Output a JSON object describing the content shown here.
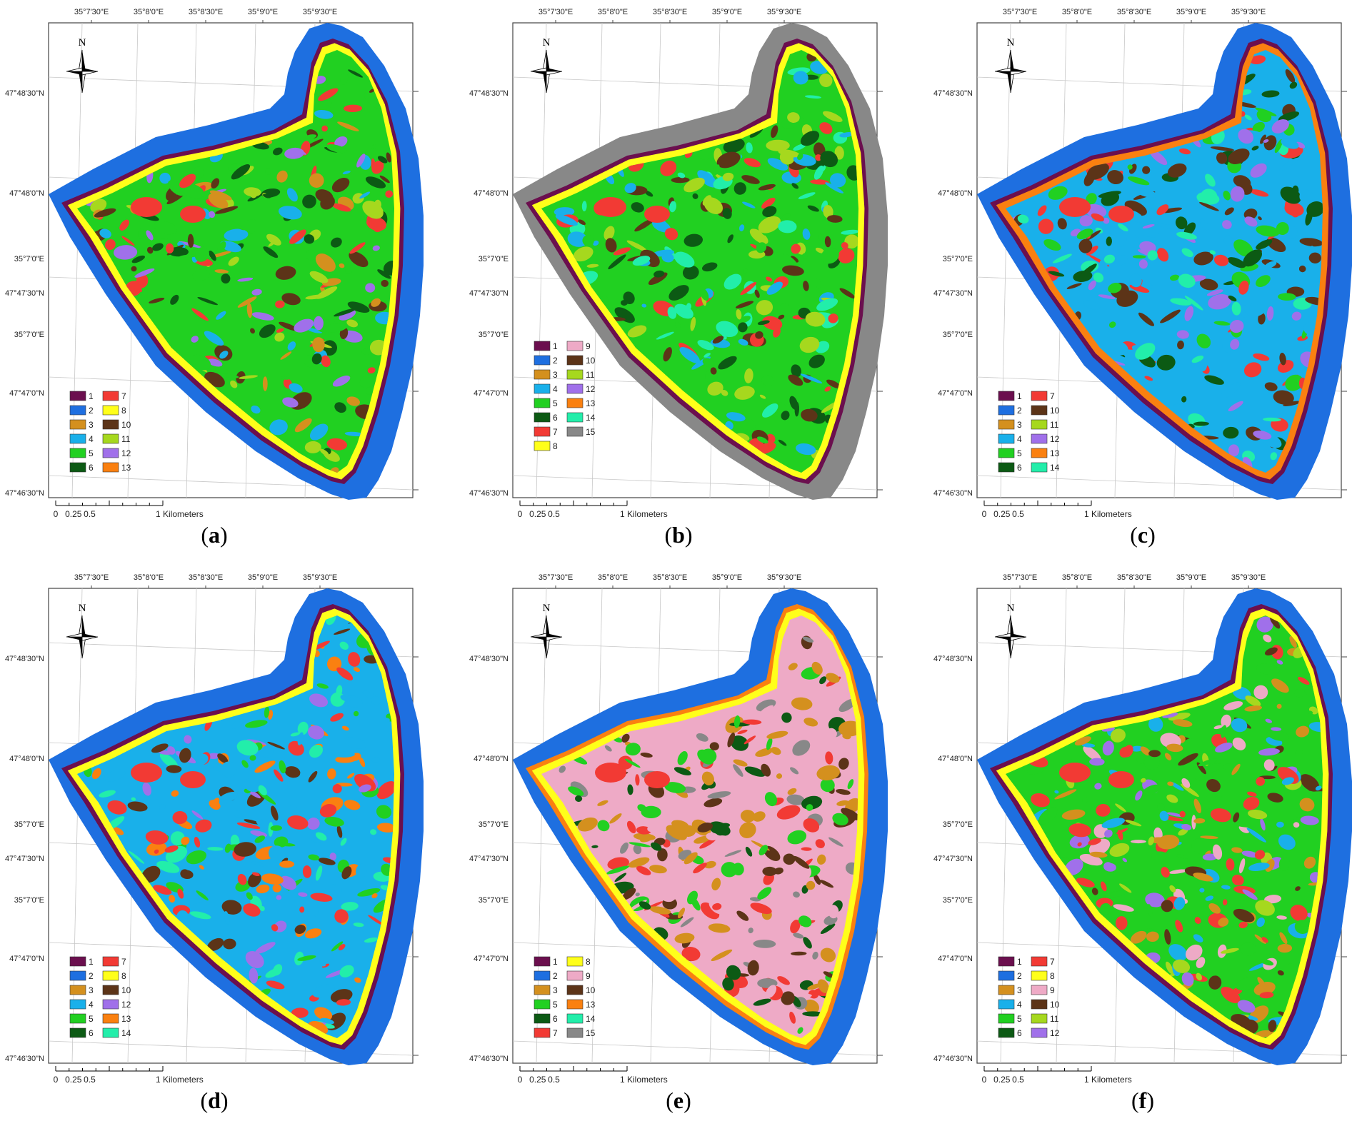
{
  "figure": {
    "panels": [
      {
        "id": "a",
        "top_labels": [
          "35°7'30\"E",
          "35°8'0\"E",
          "35°8'30\"E",
          "35°9'0\"E",
          "35°9'30\"E"
        ],
        "left_labels": [
          "47°48'30\"N",
          "47°48'0\"N",
          "35°7'0\"E",
          "47°47'30\"N",
          "35°7'0\"E",
          "47°47'0\"N",
          "47°46'30\"N"
        ],
        "legend": {
          "columns": [
            [
              {
                "code": "1",
                "color": "#6b0f4e"
              },
              {
                "code": "2",
                "color": "#1e6fe0"
              },
              {
                "code": "3",
                "color": "#d4901e"
              },
              {
                "code": "4",
                "color": "#19b0ea"
              },
              {
                "code": "5",
                "color": "#21d021"
              },
              {
                "code": "6",
                "color": "#0c5a14"
              }
            ],
            [
              {
                "code": "7",
                "color": "#f23a34"
              },
              {
                "code": "8",
                "color": "#ffff1a"
              },
              {
                "code": "10",
                "color": "#5c3418"
              },
              {
                "code": "11",
                "color": "#a6d81e"
              },
              {
                "code": "12",
                "color": "#a070ea"
              },
              {
                "code": "13",
                "color": "#fa8010"
              }
            ]
          ]
        },
        "interior_palette": [
          "#21d021",
          "#19b0ea",
          "#a070ea",
          "#d4901e",
          "#5c3418",
          "#0c5a14",
          "#a6d81e",
          "#f23a34"
        ],
        "shore_colors": [
          "#ffff1a",
          "#6b0f4e",
          "#1e6fe0"
        ],
        "caption_letter": "a"
      },
      {
        "id": "b",
        "top_labels": [
          "35°7'30\"E",
          "35°8'0\"E",
          "35°8'30\"E",
          "35°9'0\"E",
          "35°9'30\"E"
        ],
        "left_labels": [
          "47°48'30\"N",
          "47°48'0\"N",
          "35°7'0\"E",
          "47°47'30\"N",
          "35°7'0\"E",
          "47°47'0\"N",
          "47°46'30\"N"
        ],
        "legend": {
          "columns": [
            [
              {
                "code": "1",
                "color": "#6b0f4e"
              },
              {
                "code": "2",
                "color": "#1e6fe0"
              },
              {
                "code": "3",
                "color": "#d4901e"
              },
              {
                "code": "4",
                "color": "#19b0ea"
              },
              {
                "code": "5",
                "color": "#21d021"
              },
              {
                "code": "6",
                "color": "#0c5a14"
              },
              {
                "code": "7",
                "color": "#f23a34"
              },
              {
                "code": "8",
                "color": "#ffff1a"
              }
            ],
            [
              {
                "code": "9",
                "color": "#eeaac6"
              },
              {
                "code": "10",
                "color": "#5c3418"
              },
              {
                "code": "11",
                "color": "#a6d81e"
              },
              {
                "code": "12",
                "color": "#a070ea"
              },
              {
                "code": "13",
                "color": "#fa8010"
              },
              {
                "code": "14",
                "color": "#22eeaa"
              },
              {
                "code": "15",
                "color": "#888888"
              }
            ]
          ]
        },
        "interior_palette": [
          "#21d021",
          "#22eeaa",
          "#0c5a14",
          "#5c3418",
          "#19b0ea",
          "#a6d81e",
          "#f23a34"
        ],
        "shore_colors": [
          "#ffff1a",
          "#6b0f4e",
          "#888888"
        ],
        "caption_letter": "b"
      },
      {
        "id": "c",
        "top_labels": [
          "35°7'30\"E",
          "35°8'0\"E",
          "35°8'30\"E",
          "35°9'0\"E",
          "35°9'30\"E"
        ],
        "left_labels": [
          "47°48'30\"N",
          "47°48'0\"N",
          "35°7'0\"E",
          "47°47'30\"N",
          "35°7'0\"E",
          "47°47'0\"N",
          "47°46'30\"N"
        ],
        "legend": {
          "columns": [
            [
              {
                "code": "1",
                "color": "#6b0f4e"
              },
              {
                "code": "2",
                "color": "#1e6fe0"
              },
              {
                "code": "3",
                "color": "#d4901e"
              },
              {
                "code": "4",
                "color": "#19b0ea"
              },
              {
                "code": "5",
                "color": "#21d021"
              },
              {
                "code": "6",
                "color": "#0c5a14"
              }
            ],
            [
              {
                "code": "7",
                "color": "#f23a34"
              },
              {
                "code": "10",
                "color": "#5c3418"
              },
              {
                "code": "11",
                "color": "#a6d81e"
              },
              {
                "code": "12",
                "color": "#a070ea"
              },
              {
                "code": "13",
                "color": "#fa8010"
              },
              {
                "code": "14",
                "color": "#22eeaa"
              }
            ]
          ]
        },
        "interior_palette": [
          "#19b0ea",
          "#22eeaa",
          "#21d021",
          "#5c3418",
          "#a070ea",
          "#0c5a14",
          "#f23a34"
        ],
        "shore_colors": [
          "#fa8010",
          "#6b0f4e",
          "#1e6fe0"
        ],
        "caption_letter": "c"
      },
      {
        "id": "d",
        "top_labels": [
          "35°7'30\"E",
          "35°8'0\"E",
          "35°8'30\"E",
          "35°9'0\"E",
          "35°9'30\"E"
        ],
        "left_labels": [
          "47°48'30\"N",
          "47°48'0\"N",
          "35°7'0\"E",
          "47°47'30\"N",
          "35°7'0\"E",
          "47°47'0\"N",
          "47°46'30\"N"
        ],
        "legend": {
          "columns": [
            [
              {
                "code": "1",
                "color": "#6b0f4e"
              },
              {
                "code": "2",
                "color": "#1e6fe0"
              },
              {
                "code": "3",
                "color": "#d4901e"
              },
              {
                "code": "4",
                "color": "#19b0ea"
              },
              {
                "code": "5",
                "color": "#21d021"
              },
              {
                "code": "6",
                "color": "#0c5a14"
              }
            ],
            [
              {
                "code": "7",
                "color": "#f23a34"
              },
              {
                "code": "8",
                "color": "#ffff1a"
              },
              {
                "code": "10",
                "color": "#5c3418"
              },
              {
                "code": "12",
                "color": "#a070ea"
              },
              {
                "code": "13",
                "color": "#fa8010"
              },
              {
                "code": "14",
                "color": "#22eeaa"
              }
            ]
          ]
        },
        "interior_palette": [
          "#19b0ea",
          "#22eeaa",
          "#a070ea",
          "#21d021",
          "#5c3418",
          "#fa8010",
          "#f23a34"
        ],
        "shore_colors": [
          "#ffff1a",
          "#6b0f4e",
          "#1e6fe0"
        ],
        "caption_letter": "d"
      },
      {
        "id": "e",
        "top_labels": [
          "35°7'30\"E",
          "35°8'0\"E",
          "35°8'30\"E",
          "35°9'0\"E",
          "35°9'30\"E"
        ],
        "left_labels": [
          "47°48'30\"N",
          "47°48'0\"N",
          "35°7'0\"E",
          "47°47'30\"N",
          "35°7'0\"E",
          "47°47'0\"N",
          "47°46'30\"N"
        ],
        "legend": {
          "columns": [
            [
              {
                "code": "1",
                "color": "#6b0f4e"
              },
              {
                "code": "2",
                "color": "#1e6fe0"
              },
              {
                "code": "3",
                "color": "#d4901e"
              },
              {
                "code": "5",
                "color": "#21d021"
              },
              {
                "code": "6",
                "color": "#0c5a14"
              },
              {
                "code": "7",
                "color": "#f23a34"
              }
            ],
            [
              {
                "code": "8",
                "color": "#ffff1a"
              },
              {
                "code": "9",
                "color": "#eeaac6"
              },
              {
                "code": "10",
                "color": "#5c3418"
              },
              {
                "code": "13",
                "color": "#fa8010"
              },
              {
                "code": "14",
                "color": "#22eeaa"
              },
              {
                "code": "15",
                "color": "#888888"
              }
            ]
          ]
        },
        "interior_palette": [
          "#eeaac6",
          "#888888",
          "#0c5a14",
          "#d4901e",
          "#5c3418",
          "#21d021",
          "#f23a34"
        ],
        "shore_colors": [
          "#ffff1a",
          "#fa8010",
          "#1e6fe0"
        ],
        "caption_letter": "e"
      },
      {
        "id": "f",
        "top_labels": [
          "35°7'30\"E",
          "35°8'0\"E",
          "35°8'30\"E",
          "35°9'0\"E",
          "35°9'30\"E"
        ],
        "left_labels": [
          "47°48'30\"N",
          "47°48'0\"N",
          "35°7'0\"E",
          "47°47'30\"N",
          "35°7'0\"E",
          "47°47'0\"N",
          "47°46'30\"N"
        ],
        "legend": {
          "columns": [
            [
              {
                "code": "1",
                "color": "#6b0f4e"
              },
              {
                "code": "2",
                "color": "#1e6fe0"
              },
              {
                "code": "3",
                "color": "#d4901e"
              },
              {
                "code": "4",
                "color": "#19b0ea"
              },
              {
                "code": "5",
                "color": "#21d021"
              },
              {
                "code": "6",
                "color": "#0c5a14"
              }
            ],
            [
              {
                "code": "7",
                "color": "#f23a34"
              },
              {
                "code": "8",
                "color": "#ffff1a"
              },
              {
                "code": "9",
                "color": "#eeaac6"
              },
              {
                "code": "10",
                "color": "#5c3418"
              },
              {
                "code": "11",
                "color": "#a6d81e"
              },
              {
                "code": "12",
                "color": "#a070ea"
              }
            ]
          ]
        },
        "interior_palette": [
          "#21d021",
          "#eeaac6",
          "#19b0ea",
          "#a6d81e",
          "#d4901e",
          "#a070ea",
          "#5c3418",
          "#f23a34"
        ],
        "shore_colors": [
          "#ffff1a",
          "#6b0f4e",
          "#1e6fe0"
        ],
        "caption_letter": "f"
      }
    ],
    "north_label": "N",
    "scale_labels": [
      "0",
      "0.25",
      "0.5",
      "1 Kilometers"
    ]
  }
}
